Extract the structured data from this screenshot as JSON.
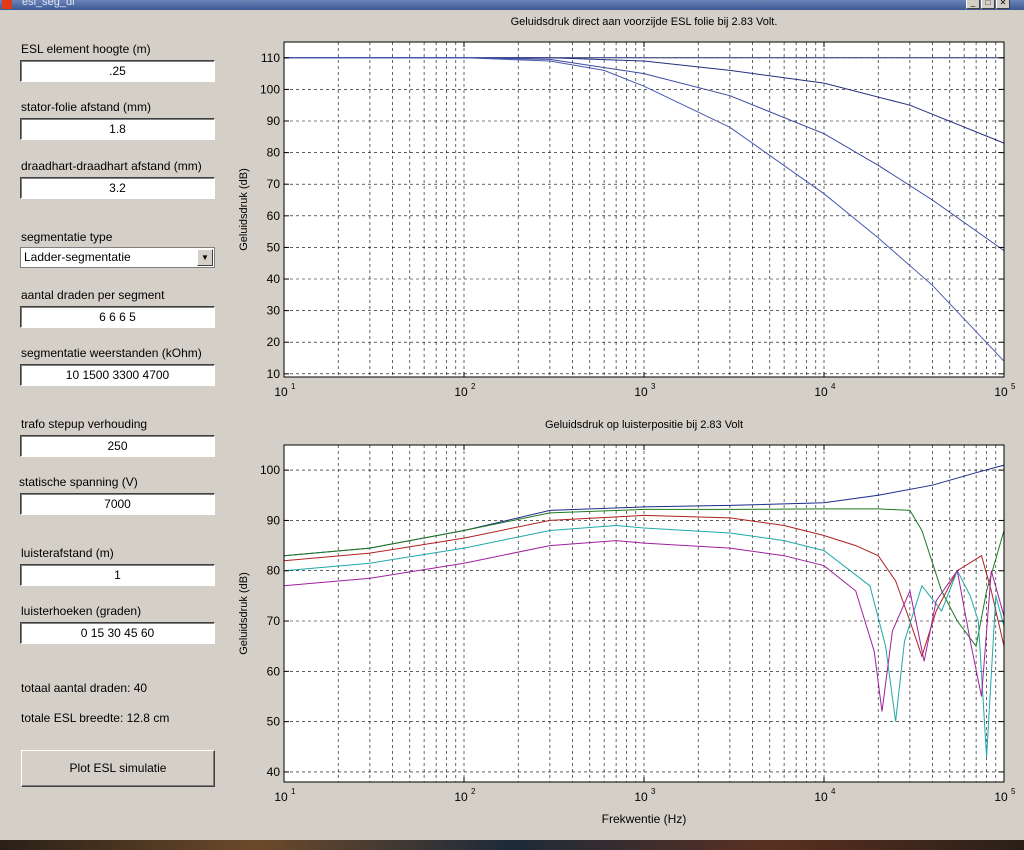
{
  "window": {
    "title": "esl_seg_dl"
  },
  "inputs": {
    "element_height": {
      "label": "ESL element hoogte (m)",
      "value": ".25"
    },
    "stator_distance": {
      "label": "stator-folie afstand (mm)",
      "value": "1.8"
    },
    "wire_spacing": {
      "label": "draadhart-draadhart afstand (mm)",
      "value": "3.2"
    },
    "segmentation_type": {
      "label": "segmentatie type",
      "value": "Ladder-segmentatie"
    },
    "wires_per_segment": {
      "label": "aantal draden per segment",
      "value": "6 6 6 5"
    },
    "segment_resistors": {
      "label": "segmentatie weerstanden (kOhm)",
      "value": "10 1500 3300 4700"
    },
    "trafo_ratio": {
      "label": "trafo stepup verhouding",
      "value": "250"
    },
    "static_voltage": {
      "label": "statische spanning (V)",
      "value": "7000"
    },
    "listen_distance": {
      "label": "luisterafstand (m)",
      "value": "1"
    },
    "listen_angles": {
      "label": "luisterhoeken (graden)",
      "value": "0 15 30 45 60"
    }
  },
  "info": {
    "total_wires": "totaal aantal draden: 40",
    "total_width": "totale ESL breedte: 12.8 cm"
  },
  "plot_button": "Plot ESL simulatie",
  "chart_data": [
    {
      "type": "line",
      "title": "Geluidsdruk direct aan voorzijde ESL folie bij 2.83 Volt.",
      "xlabel": "",
      "ylabel": "Geluidsdruk (dB)",
      "xscale": "log",
      "xlim": [
        10,
        100000
      ],
      "ylim": [
        9,
        115
      ],
      "xticks": [
        10,
        100,
        1000,
        10000,
        100000
      ],
      "yticks": [
        10,
        20,
        30,
        40,
        50,
        60,
        70,
        80,
        90,
        100,
        110
      ],
      "grid": true,
      "series": [
        {
          "color": "#1f2a6e",
          "x": [
            10,
            100,
            1000,
            10000,
            100000
          ],
          "y": [
            110,
            110,
            110,
            110,
            110
          ]
        },
        {
          "color": "#233080",
          "x": [
            10,
            100,
            300,
            1000,
            3000,
            10000,
            30000,
            100000
          ],
          "y": [
            110,
            110,
            110,
            109,
            106,
            102,
            95,
            83
          ]
        },
        {
          "color": "#3a4aa0",
          "x": [
            10,
            100,
            300,
            1000,
            3000,
            10000,
            20000,
            40000,
            100000
          ],
          "y": [
            110,
            110,
            109.5,
            105,
            98,
            86,
            76,
            65,
            49
          ]
        },
        {
          "color": "#4a5ab0",
          "x": [
            10,
            100,
            300,
            600,
            1000,
            3000,
            10000,
            20000,
            40000,
            100000
          ],
          "y": [
            110,
            110,
            109,
            106,
            101,
            88,
            67,
            53,
            38,
            14
          ]
        }
      ]
    },
    {
      "type": "line",
      "title": "Geluidsdruk op luisterpositie bij 2.83 Volt",
      "xlabel": "Frekwentie (Hz)",
      "ylabel": "Geluidsdruk (dB)",
      "xscale": "log",
      "xlim": [
        10,
        100000
      ],
      "ylim": [
        38,
        105
      ],
      "xticks": [
        10,
        100,
        1000,
        10000,
        100000
      ],
      "yticks": [
        40,
        50,
        60,
        70,
        80,
        90,
        100
      ],
      "grid": true,
      "series": [
        {
          "color": "#1a2a8a",
          "x": [
            10,
            30,
            100,
            300,
            1000,
            3000,
            10000,
            20000,
            40000,
            70000,
            100000
          ],
          "y": [
            83,
            84.5,
            88,
            92,
            92.7,
            93,
            93.5,
            95,
            97,
            99.5,
            101
          ]
        },
        {
          "color": "#1f7a1f",
          "x": [
            10,
            30,
            100,
            300,
            1000,
            3000,
            10000,
            20000,
            30000,
            35000,
            45000,
            55000,
            70000,
            80000,
            100000
          ],
          "y": [
            83,
            84.5,
            88,
            91.5,
            92.2,
            92.2,
            92.3,
            92.3,
            92,
            88,
            76,
            70,
            65,
            76,
            88
          ]
        },
        {
          "color": "#b02020",
          "x": [
            10,
            30,
            100,
            300,
            1000,
            3000,
            6000,
            10000,
            15000,
            20000,
            25000,
            30000,
            35000,
            42000,
            55000,
            75000,
            85000,
            100000
          ],
          "y": [
            82,
            83.5,
            86.5,
            90,
            91,
            90.5,
            89,
            87,
            85,
            83,
            78,
            70,
            63,
            72,
            80,
            83,
            76,
            65
          ]
        },
        {
          "color": "#20a8a8",
          "x": [
            10,
            30,
            100,
            300,
            700,
            1000,
            3000,
            6000,
            10000,
            18000,
            22000,
            25000,
            28000,
            35000,
            45000,
            55000,
            65000,
            72000,
            80000,
            90000,
            100000
          ],
          "y": [
            80,
            81.5,
            84.5,
            88,
            89,
            88.5,
            87.5,
            86,
            84,
            77,
            65,
            50,
            66,
            77,
            72,
            80,
            75,
            70,
            43,
            75,
            69
          ]
        },
        {
          "color": "#a020a0",
          "x": [
            10,
            30,
            100,
            300,
            700,
            1000,
            3000,
            6000,
            10000,
            15000,
            19000,
            21000,
            24000,
            30000,
            36000,
            42000,
            55000,
            65000,
            75000,
            85000,
            100000
          ],
          "y": [
            77,
            78.5,
            81.5,
            85,
            86,
            85.5,
            84.5,
            83,
            81,
            76,
            64,
            52,
            68,
            76,
            62,
            74,
            80,
            66,
            55,
            80,
            71
          ]
        }
      ]
    }
  ]
}
